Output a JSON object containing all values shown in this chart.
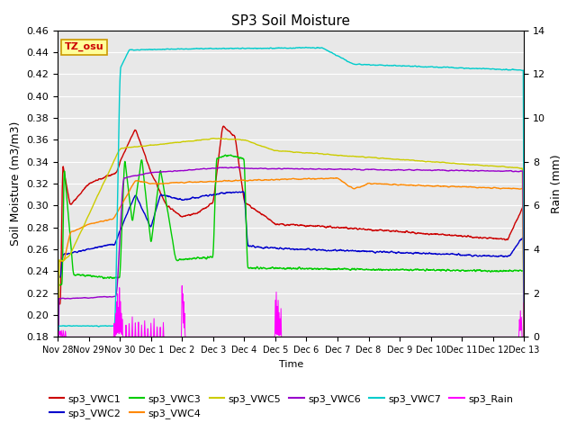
{
  "title": "SP3 Soil Moisture",
  "xlabel": "Time",
  "ylabel_left": "Soil Moisture (m3/m3)",
  "ylabel_right": "Rain (mm)",
  "ylim_left": [
    0.18,
    0.46
  ],
  "ylim_right": [
    0,
    14
  ],
  "yticks_left": [
    0.18,
    0.2,
    0.22,
    0.24,
    0.26,
    0.28,
    0.3,
    0.32,
    0.34,
    0.36,
    0.38,
    0.4,
    0.42,
    0.44,
    0.46
  ],
  "yticks_right": [
    0,
    2,
    4,
    6,
    8,
    10,
    12,
    14
  ],
  "bg_color": "#e8e8e8",
  "series_colors": {
    "sp3_VWC1": "#cc0000",
    "sp3_VWC2": "#0000cc",
    "sp3_VWC3": "#00cc00",
    "sp3_VWC4": "#ff8800",
    "sp3_VWC5": "#cccc00",
    "sp3_VWC6": "#9900cc",
    "sp3_VWC7": "#00cccc",
    "sp3_Rain": "#ff00ff"
  },
  "legend_label": "TZ_osu",
  "legend_box_facecolor": "#ffff99",
  "legend_box_edgecolor": "#cc9900",
  "legend_text_color": "#cc0000",
  "xtick_labels": [
    "Nov 28",
    "Nov 29",
    "Nov 30",
    "Dec 1",
    "Dec 2",
    "Dec 3",
    "Dec 4",
    "Dec 5",
    "Dec 6",
    "Dec 7",
    "Dec 8",
    "Dec 9",
    "Dec 10",
    "Dec 11",
    "Dec 12",
    "Dec 13"
  ]
}
